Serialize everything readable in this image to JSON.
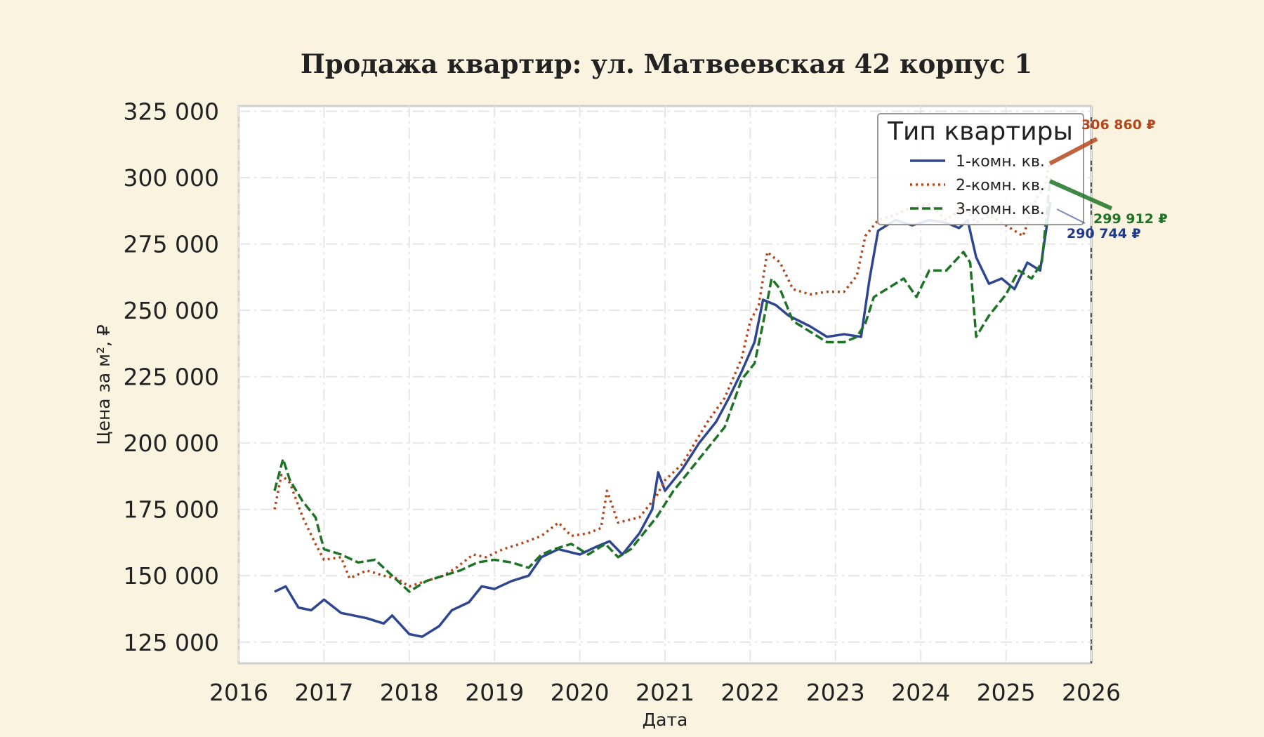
{
  "chart_data": {
    "type": "line",
    "title": "Продажа квартир: ул. Матвеевская 42 корпус 1",
    "xlabel": "Дата",
    "ylabel": "Цена за м², ₽",
    "xlim": [
      2016.0,
      2026.0
    ],
    "ylim": [
      117000,
      327000
    ],
    "x_ticks": [
      "2016",
      "2017",
      "2018",
      "2019",
      "2020",
      "2021",
      "2022",
      "2023",
      "2024",
      "2025",
      "2026"
    ],
    "y_ticks": [
      "125 000",
      "150 000",
      "175 000",
      "200 000",
      "225 000",
      "250 000",
      "275 000",
      "300 000",
      "325 000"
    ],
    "y_tick_values": [
      125000,
      150000,
      175000,
      200000,
      225000,
      250000,
      275000,
      300000,
      325000
    ],
    "grid": true,
    "legend": {
      "title": "Тип квартиры",
      "position": "top-right"
    },
    "series": [
      {
        "name": "1-комн. кв.",
        "color": "#2e4591",
        "style": "solid",
        "x": [
          2016.42,
          2016.55,
          2016.7,
          2016.85,
          2017.0,
          2017.2,
          2017.5,
          2017.7,
          2017.8,
          2018.0,
          2018.15,
          2018.35,
          2018.5,
          2018.7,
          2018.85,
          2019.0,
          2019.2,
          2019.4,
          2019.55,
          2019.75,
          2020.0,
          2020.2,
          2020.35,
          2020.5,
          2020.7,
          2020.85,
          2020.92,
          2021.0,
          2021.2,
          2021.4,
          2021.6,
          2021.75,
          2021.9,
          2022.05,
          2022.15,
          2022.3,
          2022.45,
          2022.7,
          2022.9,
          2023.1,
          2023.3,
          2023.4,
          2023.5,
          2023.7,
          2023.9,
          2024.1,
          2024.3,
          2024.45,
          2024.55,
          2024.65,
          2024.8,
          2024.95,
          2025.1,
          2025.25,
          2025.4,
          2025.52
        ],
        "y": [
          144000,
          146000,
          138000,
          137000,
          141000,
          136000,
          134000,
          132000,
          135000,
          128000,
          127000,
          131000,
          137000,
          140000,
          146000,
          145000,
          148000,
          150000,
          157000,
          160000,
          158000,
          161000,
          163000,
          158000,
          166000,
          175000,
          189000,
          182000,
          190000,
          200000,
          208000,
          217000,
          227000,
          238000,
          254000,
          252000,
          248000,
          244000,
          240000,
          241000,
          240000,
          262000,
          280000,
          284000,
          282000,
          284000,
          283000,
          281000,
          284000,
          270000,
          260000,
          262000,
          258000,
          268000,
          265000,
          290744
        ]
      },
      {
        "name": "2-комн. кв.",
        "color": "#b5481e",
        "style": "dotted",
        "x": [
          2016.42,
          2016.5,
          2016.6,
          2016.75,
          2016.9,
          2017.0,
          2017.2,
          2017.3,
          2017.5,
          2017.7,
          2017.85,
          2018.0,
          2018.2,
          2018.4,
          2018.55,
          2018.75,
          2018.9,
          2019.1,
          2019.3,
          2019.55,
          2019.75,
          2019.9,
          2020.1,
          2020.25,
          2020.32,
          2020.45,
          2020.7,
          2020.9,
          2021.0,
          2021.2,
          2021.5,
          2021.7,
          2021.9,
          2022.0,
          2022.1,
          2022.2,
          2022.35,
          2022.5,
          2022.7,
          2022.9,
          2023.1,
          2023.25,
          2023.35,
          2023.5,
          2023.7,
          2023.9,
          2024.1,
          2024.3,
          2024.5,
          2024.65,
          2024.8,
          2025.0,
          2025.2,
          2025.35,
          2025.45,
          2025.52
        ],
        "y": [
          175000,
          188000,
          185000,
          172000,
          162000,
          156000,
          157000,
          149000,
          152000,
          150000,
          149000,
          146000,
          148000,
          150000,
          153000,
          158000,
          157000,
          160000,
          162000,
          165000,
          170000,
          165000,
          166000,
          168000,
          182000,
          170000,
          172000,
          180000,
          186000,
          192000,
          208000,
          217000,
          232000,
          246000,
          252000,
          272000,
          268000,
          258000,
          256000,
          257000,
          257000,
          263000,
          278000,
          284000,
          286000,
          289000,
          290000,
          284000,
          289000,
          283000,
          286000,
          282000,
          278000,
          292000,
          296000,
          306860
        ]
      },
      {
        "name": "3-комн. кв.",
        "color": "#1f7326",
        "style": "dashed",
        "x": [
          2016.42,
          2016.52,
          2016.6,
          2016.75,
          2016.9,
          2017.0,
          2017.2,
          2017.4,
          2017.6,
          2017.8,
          2018.0,
          2018.2,
          2018.4,
          2018.6,
          2018.8,
          2019.0,
          2019.2,
          2019.4,
          2019.55,
          2019.7,
          2019.9,
          2020.1,
          2020.3,
          2020.45,
          2020.6,
          2020.75,
          2020.9,
          2021.1,
          2021.3,
          2021.5,
          2021.7,
          2021.9,
          2022.05,
          2022.15,
          2022.25,
          2022.35,
          2022.5,
          2022.7,
          2022.9,
          2023.1,
          2023.25,
          2023.35,
          2023.45,
          2023.6,
          2023.8,
          2023.95,
          2024.1,
          2024.3,
          2024.5,
          2024.58,
          2024.65,
          2024.8,
          2025.0,
          2025.15,
          2025.3,
          2025.42,
          2025.52
        ],
        "y": [
          182000,
          194000,
          186000,
          178000,
          172000,
          160000,
          158000,
          155000,
          156000,
          150000,
          144000,
          148000,
          150000,
          152000,
          155000,
          156000,
          155000,
          153000,
          158000,
          160000,
          162000,
          158000,
          162000,
          157000,
          160000,
          166000,
          172000,
          182000,
          190000,
          198000,
          206000,
          224000,
          230000,
          245000,
          262000,
          258000,
          246000,
          242000,
          238000,
          238000,
          240000,
          245000,
          255000,
          258000,
          262000,
          255000,
          265000,
          265000,
          272000,
          268000,
          240000,
          248000,
          256000,
          265000,
          262000,
          268000,
          299912
        ]
      }
    ],
    "annotations": [
      {
        "text": "306 860 ₽",
        "series": "2-комн. кв.",
        "color": "#b5481e"
      },
      {
        "text": "299 912 ₽",
        "series": "3-комн. кв.",
        "color": "#1f7326"
      },
      {
        "text": "290 744 ₽",
        "series": "1-комн. кв.",
        "color": "#1f3a8c"
      }
    ]
  }
}
